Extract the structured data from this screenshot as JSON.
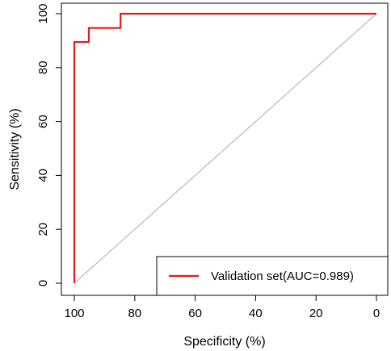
{
  "chart_data": {
    "type": "line",
    "xlabel": "Specificity (%)",
    "ylabel": "Sensitivity (%)",
    "x_reversed": true,
    "xlim": [
      100,
      0
    ],
    "ylim": [
      0,
      100
    ],
    "x_ticks": [
      100,
      80,
      60,
      40,
      20,
      0
    ],
    "y_ticks": [
      0,
      20,
      40,
      60,
      80,
      100
    ],
    "grid": false,
    "legend_position": "bottom-right",
    "series": [
      {
        "name": "Validation set(AUC=0.989)",
        "color": "#e31a1c",
        "x": [
          100,
          100,
          95.2,
          95.2,
          84.7,
          84.7,
          0
        ],
        "y": [
          0,
          89.5,
          89.5,
          94.7,
          94.7,
          100,
          100
        ]
      }
    ],
    "reference_line": {
      "x": [
        100,
        0
      ],
      "y": [
        0,
        100
      ],
      "color": "#aaaaaa"
    }
  }
}
